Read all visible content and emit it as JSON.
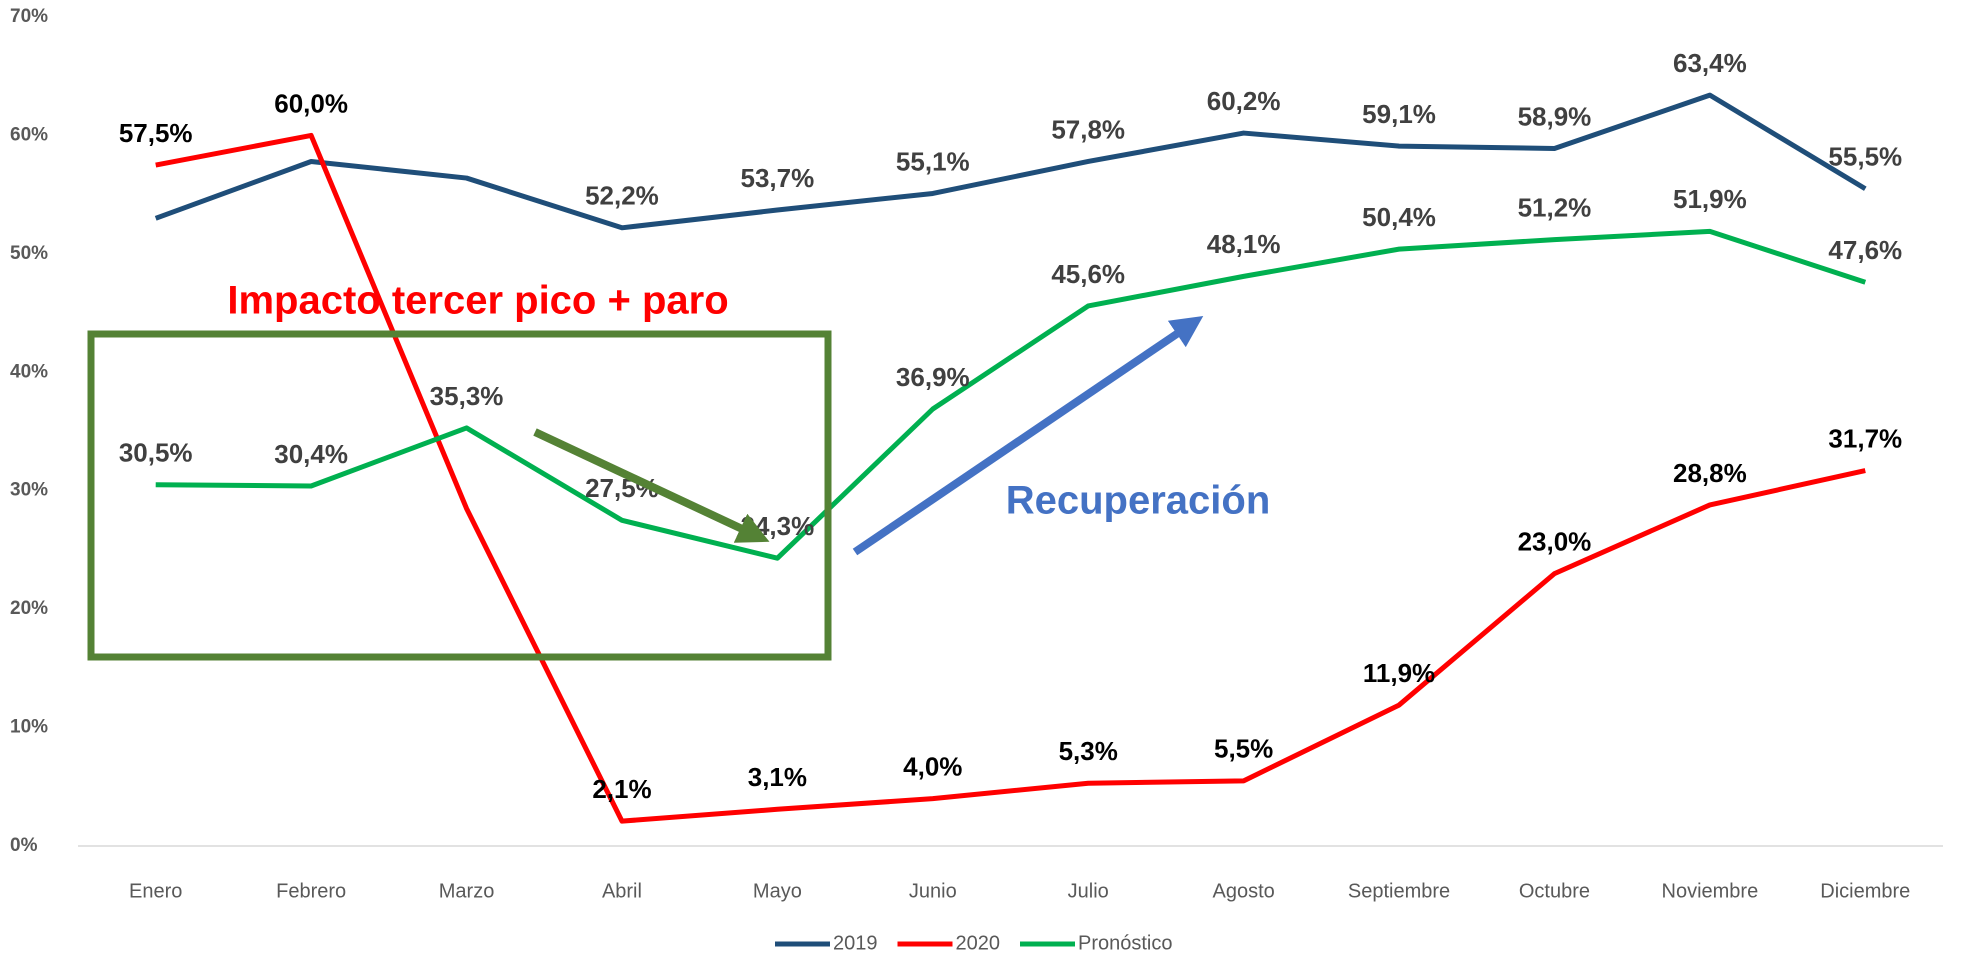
{
  "chart_data": {
    "type": "line",
    "categories": [
      "Enero",
      "Febrero",
      "Marzo",
      "Abril",
      "Mayo",
      "Junio",
      "Julio",
      "Agosto",
      "Septiembre",
      "Octubre",
      "Noviembre",
      "Diciembre"
    ],
    "series": [
      {
        "name": "2019",
        "color": "#1f4e79",
        "values": [
          53.0,
          57.8,
          56.4,
          52.2,
          53.7,
          55.1,
          57.8,
          60.2,
          59.1,
          58.9,
          63.4,
          55.5
        ],
        "value_labels": [
          null,
          null,
          null,
          "52,2%",
          "53,7%",
          "55,1%",
          "57,8%",
          "60,2%",
          "59,1%",
          "58,9%",
          "63,4%",
          "55,5%"
        ]
      },
      {
        "name": "2020",
        "color": "#ff0000",
        "values": [
          57.5,
          60.0,
          28.5,
          2.1,
          3.1,
          4.0,
          5.3,
          5.5,
          11.9,
          23.0,
          28.8,
          31.7
        ],
        "value_labels": [
          "57,5%",
          "60,0%",
          null,
          "2,1%",
          "3,1%",
          "4,0%",
          "5,3%",
          "5,5%",
          "11,9%",
          "23,0%",
          "28,8%",
          "31,7%"
        ]
      },
      {
        "name": "Pronóstico",
        "color": "#00b050",
        "values": [
          30.5,
          30.4,
          35.3,
          27.5,
          24.3,
          36.9,
          45.6,
          48.1,
          50.4,
          51.2,
          51.9,
          47.6
        ],
        "value_labels": [
          "30,5%",
          "30,4%",
          "35,3%",
          "27,5%",
          "24,3%",
          "36,9%",
          "45,6%",
          "48,1%",
          "50,4%",
          "51,2%",
          "51,9%",
          "47,6%"
        ]
      }
    ],
    "ylim": [
      0,
      70
    ],
    "yticks": [
      {
        "value": 0,
        "label": "0%"
      },
      {
        "value": 10,
        "label": "10%"
      },
      {
        "value": 20,
        "label": "20%"
      },
      {
        "value": 30,
        "label": "30%"
      },
      {
        "value": 40,
        "label": "40%"
      },
      {
        "value": 50,
        "label": "50%"
      },
      {
        "value": 60,
        "label": "60%"
      },
      {
        "value": 70,
        "label": "70%"
      }
    ],
    "annotations": [
      "Impacto tercer pico + paro",
      "Recuperación"
    ]
  }
}
